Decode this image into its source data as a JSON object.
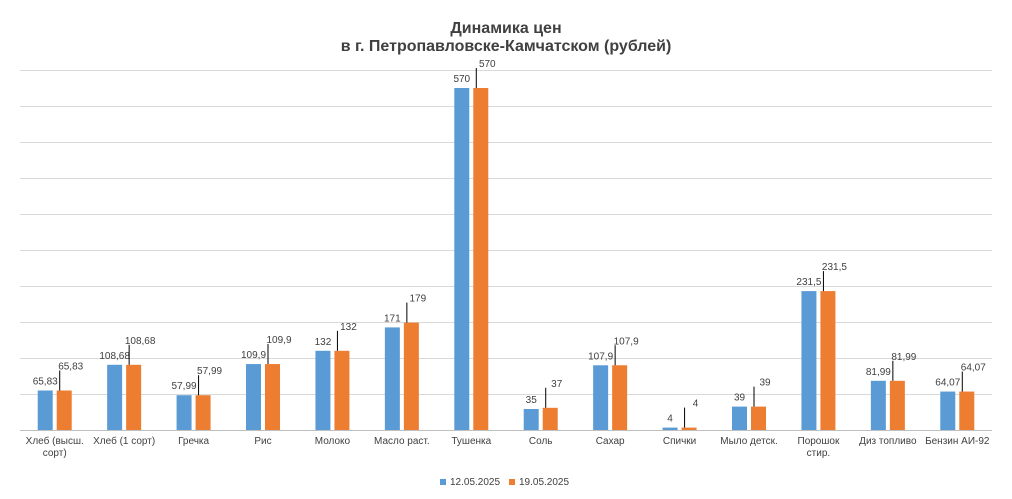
{
  "chart_data": {
    "type": "bar",
    "title": [
      "Динамика цен",
      "в г. Петропавловске-Камчатском (рублей)"
    ],
    "categories": [
      [
        "Хлеб (высш.",
        "сорт)"
      ],
      [
        "Хлеб (1 сорт)"
      ],
      [
        "Гречка"
      ],
      [
        "Рис"
      ],
      [
        "Молоко"
      ],
      [
        "Масло раст."
      ],
      [
        "Тушенка"
      ],
      [
        "Соль"
      ],
      [
        "Сахар"
      ],
      [
        "Спички"
      ],
      [
        "Мыло детск."
      ],
      [
        "Порошок",
        "стир."
      ],
      [
        "Диз топливо"
      ],
      [
        "Бензин АИ-92"
      ]
    ],
    "series": [
      {
        "name": "12.05.2025",
        "color": "#5B9BD5",
        "values": [
          65.83,
          108.68,
          57.99,
          109.9,
          132,
          171,
          570,
          35,
          107.9,
          4,
          39,
          231.5,
          81.99,
          64.07
        ],
        "labels": [
          "65,83",
          "108,68",
          "57,99",
          "109,9",
          "132",
          "171",
          "570",
          "35",
          "107,9",
          "4",
          "39",
          "231,5",
          "81,99",
          "64,07"
        ]
      },
      {
        "name": "19.05.2025",
        "color": "#ED7D31",
        "values": [
          65.83,
          108.68,
          57.99,
          109.9,
          132,
          179,
          570,
          37,
          107.9,
          4,
          39,
          231.5,
          81.99,
          64.07
        ],
        "labels": [
          "65,83",
          "108,68",
          "57,99",
          "109,9",
          "132",
          "179",
          "570",
          "37",
          "107,9",
          "4",
          "39",
          "231,5",
          "81,99",
          "64,07"
        ]
      }
    ],
    "ylim": [
      0,
      600
    ],
    "grid": true,
    "legend_position": "bottom",
    "xlabel": "",
    "ylabel": ""
  }
}
